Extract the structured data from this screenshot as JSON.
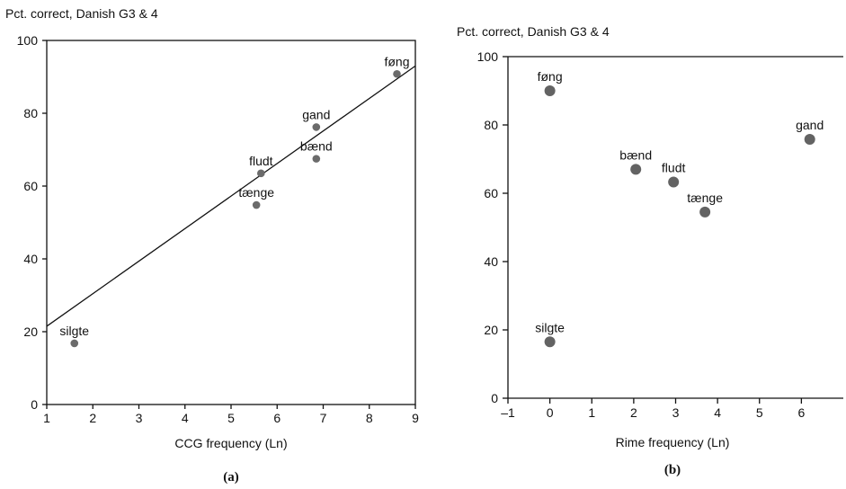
{
  "chart_data": [
    {
      "type": "scatter",
      "ylabel": "Pct. correct, Danish G3 & 4",
      "xlabel": "CCG frequency (Ln)",
      "caption": "(a)",
      "xlim": [
        1,
        9
      ],
      "ylim": [
        0,
        100
      ],
      "xticks": [
        1,
        2,
        3,
        4,
        5,
        6,
        7,
        8,
        9
      ],
      "yticks": [
        0,
        20,
        40,
        60,
        80,
        100
      ],
      "frame": "box",
      "points": [
        {
          "label": "silgte",
          "x": 1.6,
          "y": 16.8
        },
        {
          "label": "tænge",
          "x": 5.55,
          "y": 54.8
        },
        {
          "label": "fludt",
          "x": 5.65,
          "y": 63.5
        },
        {
          "label": "bænd",
          "x": 6.85,
          "y": 67.5
        },
        {
          "label": "gand",
          "x": 6.85,
          "y": 76.2
        },
        {
          "label": "føng",
          "x": 8.6,
          "y": 90.8
        }
      ],
      "trendline": {
        "x0": 1,
        "y0": 21.5,
        "x1": 9,
        "y1": 93
      }
    },
    {
      "type": "scatter",
      "ylabel": "Pct. correct, Danish G3 & 4",
      "xlabel": "Rime frequency (Ln)",
      "caption": "(b)",
      "xlim": [
        -1,
        7
      ],
      "ylim": [
        0,
        100
      ],
      "xticks": [
        -1,
        0,
        1,
        2,
        3,
        4,
        5,
        6
      ],
      "xtick_labels": [
        "–1",
        "0",
        "1",
        "2",
        "3",
        "4",
        "5",
        "6"
      ],
      "yticks": [
        0,
        20,
        40,
        60,
        80,
        100
      ],
      "frame": "open-top-line",
      "points": [
        {
          "label": "føng",
          "x": 0,
          "y": 90
        },
        {
          "label": "silgte",
          "x": 0,
          "y": 16.5
        },
        {
          "label": "bænd",
          "x": 2.05,
          "y": 67
        },
        {
          "label": "fludt",
          "x": 2.95,
          "y": 63.3
        },
        {
          "label": "tænge",
          "x": 3.7,
          "y": 54.5
        },
        {
          "label": "gand",
          "x": 6.2,
          "y": 75.8
        }
      ]
    }
  ]
}
